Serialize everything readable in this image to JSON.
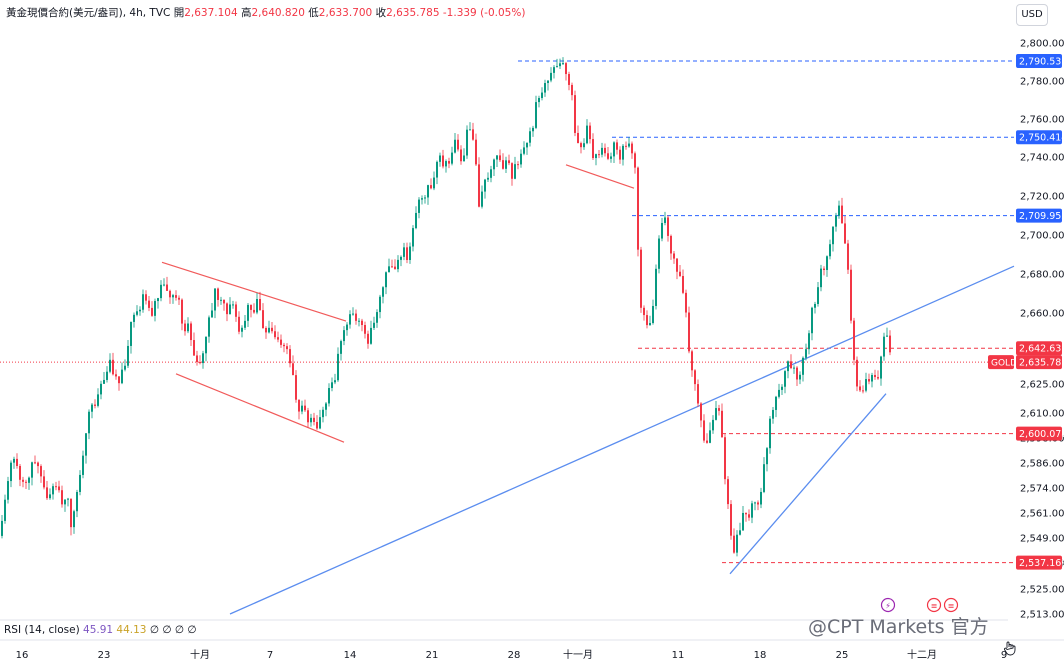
{
  "header": {
    "symbol": "黃金現價合約(美元/盎司), 4h, TVC",
    "open_label": "開",
    "open": "2,637.104",
    "high_label": "高",
    "high": "2,640.820",
    "low_label": "低",
    "low": "2,633.700",
    "close_label": "收",
    "close": "2,635.785",
    "change": "-1.339 (-0.05%)"
  },
  "currency_button": "USD",
  "rsi": {
    "label": "RSI (14, close)",
    "value1": "45.91",
    "value2": "44.13",
    "extras": [
      "∅",
      "∅",
      "∅",
      "∅"
    ]
  },
  "watermark": "@CPT Markets 官方",
  "colors": {
    "up": "#089981",
    "down": "#f23645",
    "trendline": "#5b8def",
    "channel": "#f15a5a",
    "blue_level": "#2962ff",
    "red_level": "#f23645"
  },
  "chart_data": {
    "type": "candlestick",
    "timeframe": "4h",
    "y_axis": {
      "ticks": [
        2800,
        2780,
        2760,
        2740,
        2720,
        2700,
        2680,
        2660,
        2625,
        2610,
        2598,
        2586,
        2574,
        2561,
        2549,
        2537,
        2525,
        2513
      ],
      "tick_labels": [
        "2,800.000",
        "2,780.000",
        "2,760.000",
        "2,740.000",
        "2,720.000",
        "2,700.000",
        "2,680.000",
        "2,660.000",
        "2,625.000",
        "2,610.000",
        "2,598.000",
        "2,586.000",
        "2,574.000",
        "2,561.000",
        "2,549.000",
        "2,537.000",
        "2,525.000",
        "2,513.000"
      ]
    },
    "x_axis": {
      "labels": [
        "16",
        "23",
        "十月",
        "7",
        "14",
        "21",
        "28",
        "十一月",
        "11",
        "18",
        "25",
        "十二月",
        "9"
      ]
    },
    "price_levels": [
      {
        "value": 2790.533,
        "label": "2,790.533",
        "color": "blue"
      },
      {
        "value": 2750.414,
        "label": "2,750.414",
        "color": "blue"
      },
      {
        "value": 2709.952,
        "label": "2,709.952",
        "color": "blue"
      },
      {
        "value": 2642.637,
        "label": "2,642.637",
        "color": "red"
      },
      {
        "value": 2600.078,
        "label": "2,600.078",
        "color": "red"
      },
      {
        "value": 2537.169,
        "label": "2,537.169",
        "color": "red"
      }
    ],
    "current_price": {
      "value": 2635.785,
      "label": "2,635.785",
      "tag": "GOLD"
    },
    "price_path": [
      [
        0,
        2550
      ],
      [
        6,
        2578
      ],
      [
        12,
        2586
      ],
      [
        18,
        2580
      ],
      [
        22,
        2576
      ],
      [
        26,
        2578
      ],
      [
        30,
        2584
      ],
      [
        34,
        2588
      ],
      [
        38,
        2580
      ],
      [
        42,
        2578
      ],
      [
        46,
        2570
      ],
      [
        50,
        2574
      ],
      [
        54,
        2572
      ],
      [
        58,
        2574
      ],
      [
        62,
        2566
      ],
      [
        66,
        2575
      ],
      [
        70,
        2555
      ],
      [
        74,
        2568
      ],
      [
        78,
        2580
      ],
      [
        82,
        2592
      ],
      [
        86,
        2604
      ],
      [
        90,
        2618
      ],
      [
        94,
        2612
      ],
      [
        98,
        2625
      ],
      [
        102,
        2628
      ],
      [
        106,
        2632
      ],
      [
        110,
        2635
      ],
      [
        114,
        2630
      ],
      [
        118,
        2626
      ],
      [
        122,
        2632
      ],
      [
        126,
        2642
      ],
      [
        130,
        2656
      ],
      [
        134,
        2664
      ],
      [
        138,
        2662
      ],
      [
        142,
        2668
      ],
      [
        146,
        2664
      ],
      [
        150,
        2660
      ],
      [
        154,
        2666
      ],
      [
        158,
        2668
      ],
      [
        162,
        2676
      ],
      [
        166,
        2670
      ],
      [
        170,
        2666
      ],
      [
        174,
        2668
      ],
      [
        178,
        2664
      ],
      [
        182,
        2652
      ],
      [
        186,
        2656
      ],
      [
        190,
        2646
      ],
      [
        194,
        2640
      ],
      [
        198,
        2634
      ],
      [
        202,
        2640
      ],
      [
        206,
        2650
      ],
      [
        210,
        2660
      ],
      [
        214,
        2672
      ],
      [
        218,
        2668
      ],
      [
        222,
        2664
      ],
      [
        226,
        2662
      ],
      [
        230,
        2666
      ],
      [
        234,
        2660
      ],
      [
        238,
        2650
      ],
      [
        242,
        2652
      ],
      [
        246,
        2662
      ],
      [
        250,
        2660
      ],
      [
        254,
        2664
      ],
      [
        258,
        2666
      ],
      [
        262,
        2652
      ],
      [
        266,
        2650
      ],
      [
        270,
        2654
      ],
      [
        274,
        2648
      ],
      [
        278,
        2644
      ],
      [
        282,
        2646
      ],
      [
        286,
        2642
      ],
      [
        290,
        2634
      ],
      [
        294,
        2620
      ],
      [
        298,
        2612
      ],
      [
        302,
        2616
      ],
      [
        306,
        2606
      ],
      [
        310,
        2608
      ],
      [
        314,
        2606
      ],
      [
        318,
        2604
      ],
      [
        322,
        2610
      ],
      [
        326,
        2618
      ],
      [
        330,
        2626
      ],
      [
        334,
        2628
      ],
      [
        338,
        2640
      ],
      [
        342,
        2648
      ],
      [
        346,
        2654
      ],
      [
        350,
        2660
      ],
      [
        354,
        2656
      ],
      [
        358,
        2658
      ],
      [
        362,
        2650
      ],
      [
        366,
        2646
      ],
      [
        370,
        2650
      ],
      [
        374,
        2656
      ],
      [
        378,
        2666
      ],
      [
        382,
        2676
      ],
      [
        386,
        2680
      ],
      [
        390,
        2686
      ],
      [
        394,
        2684
      ],
      [
        398,
        2688
      ],
      [
        402,
        2694
      ],
      [
        406,
        2690
      ],
      [
        410,
        2696
      ],
      [
        414,
        2708
      ],
      [
        418,
        2718
      ],
      [
        422,
        2720
      ],
      [
        426,
        2724
      ],
      [
        430,
        2722
      ],
      [
        434,
        2734
      ],
      [
        438,
        2740
      ],
      [
        442,
        2738
      ],
      [
        446,
        2734
      ],
      [
        450,
        2740
      ],
      [
        454,
        2748
      ],
      [
        458,
        2742
      ],
      [
        462,
        2736
      ],
      [
        466,
        2752
      ],
      [
        470,
        2754
      ],
      [
        474,
        2740
      ],
      [
        478,
        2716
      ],
      [
        482,
        2722
      ],
      [
        486,
        2730
      ],
      [
        490,
        2732
      ],
      [
        494,
        2740
      ],
      [
        498,
        2736
      ],
      [
        502,
        2734
      ],
      [
        506,
        2742
      ],
      [
        510,
        2726
      ],
      [
        514,
        2734
      ],
      [
        518,
        2740
      ],
      [
        522,
        2744
      ],
      [
        526,
        2748
      ],
      [
        530,
        2752
      ],
      [
        534,
        2764
      ],
      [
        538,
        2772
      ],
      [
        542,
        2776
      ],
      [
        546,
        2780
      ],
      [
        550,
        2784
      ],
      [
        554,
        2788
      ],
      [
        558,
        2786
      ],
      [
        562,
        2790
      ],
      [
        566,
        2784
      ],
      [
        570,
        2776
      ],
      [
        574,
        2752
      ],
      [
        578,
        2744
      ],
      [
        582,
        2748
      ],
      [
        586,
        2754
      ],
      [
        590,
        2744
      ],
      [
        594,
        2738
      ],
      [
        598,
        2742
      ],
      [
        602,
        2746
      ],
      [
        606,
        2740
      ],
      [
        610,
        2742
      ],
      [
        614,
        2748
      ],
      [
        618,
        2740
      ],
      [
        622,
        2746
      ],
      [
        626,
        2748
      ],
      [
        630,
        2742
      ],
      [
        634,
        2734
      ],
      [
        636,
        2708
      ],
      [
        638,
        2682
      ],
      [
        640,
        2664
      ],
      [
        644,
        2658
      ],
      [
        648,
        2652
      ],
      [
        652,
        2662
      ],
      [
        656,
        2688
      ],
      [
        660,
        2704
      ],
      [
        664,
        2708
      ],
      [
        668,
        2694
      ],
      [
        672,
        2690
      ],
      [
        676,
        2682
      ],
      [
        680,
        2678
      ],
      [
        684,
        2666
      ],
      [
        688,
        2642
      ],
      [
        692,
        2628
      ],
      [
        696,
        2618
      ],
      [
        700,
        2604
      ],
      [
        704,
        2596
      ],
      [
        708,
        2600
      ],
      [
        712,
        2608
      ],
      [
        716,
        2614
      ],
      [
        720,
        2604
      ],
      [
        724,
        2580
      ],
      [
        728,
        2560
      ],
      [
        732,
        2542
      ],
      [
        736,
        2548
      ],
      [
        740,
        2558
      ],
      [
        744,
        2562
      ],
      [
        748,
        2560
      ],
      [
        752,
        2566
      ],
      [
        756,
        2562
      ],
      [
        760,
        2574
      ],
      [
        764,
        2590
      ],
      [
        768,
        2602
      ],
      [
        772,
        2612
      ],
      [
        776,
        2620
      ],
      [
        780,
        2624
      ],
      [
        784,
        2632
      ],
      [
        788,
        2638
      ],
      [
        792,
        2632
      ],
      [
        796,
        2626
      ],
      [
        800,
        2630
      ],
      [
        804,
        2640
      ],
      [
        808,
        2650
      ],
      [
        812,
        2664
      ],
      [
        816,
        2670
      ],
      [
        820,
        2680
      ],
      [
        824,
        2684
      ],
      [
        828,
        2690
      ],
      [
        832,
        2706
      ],
      [
        836,
        2714
      ],
      [
        840,
        2712
      ],
      [
        844,
        2696
      ],
      [
        848,
        2674
      ],
      [
        852,
        2640
      ],
      [
        856,
        2624
      ],
      [
        860,
        2620
      ],
      [
        864,
        2624
      ],
      [
        868,
        2626
      ],
      [
        872,
        2630
      ],
      [
        876,
        2622
      ],
      [
        880,
        2640
      ],
      [
        884,
        2652
      ],
      [
        888,
        2646
      ],
      [
        890,
        2637
      ]
    ]
  }
}
